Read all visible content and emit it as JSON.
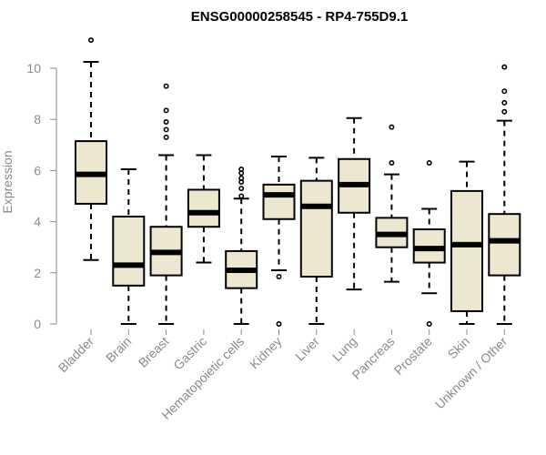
{
  "chart_data": {
    "type": "boxplot",
    "title": "ENSG00000258545 - RP4-755D9.1",
    "xlabel": "",
    "ylabel": "Expression",
    "ylim": [
      0,
      11.3
    ],
    "yticks": [
      0,
      2,
      4,
      6,
      8,
      10
    ],
    "box_fill": "#ede7cf",
    "grid": false,
    "categories": [
      "Bladder",
      "Brain",
      "Breast",
      "Gastric",
      "Hematopoietic cells",
      "Kidney",
      "Liver",
      "Lung",
      "Pancreas",
      "Prostate",
      "Skin",
      "Unknown / Other"
    ],
    "boxes": [
      {
        "name": "Bladder",
        "min": 2.5,
        "q1": 4.7,
        "median": 5.85,
        "q3": 7.15,
        "max": 10.25,
        "outliers": [
          11.1
        ]
      },
      {
        "name": "Brain",
        "min": 0.0,
        "q1": 1.5,
        "median": 2.3,
        "q3": 4.2,
        "max": 6.05,
        "outliers": []
      },
      {
        "name": "Breast",
        "min": 0.0,
        "q1": 1.9,
        "median": 2.8,
        "q3": 3.8,
        "max": 6.6,
        "outliers": [
          7.3,
          7.6,
          7.9,
          8.35,
          9.3
        ]
      },
      {
        "name": "Gastric",
        "min": 2.4,
        "q1": 3.8,
        "median": 4.35,
        "q3": 5.25,
        "max": 6.6,
        "outliers": []
      },
      {
        "name": "Hematopoietic cells",
        "min": 0.0,
        "q1": 1.4,
        "median": 2.1,
        "q3": 2.85,
        "max": 4.9,
        "outliers": [
          5.0,
          5.3,
          5.55,
          5.7,
          5.9,
          6.05
        ]
      },
      {
        "name": "Kidney",
        "min": 2.1,
        "q1": 4.1,
        "median": 5.05,
        "q3": 5.45,
        "max": 6.55,
        "outliers": [
          1.85,
          0.0
        ]
      },
      {
        "name": "Liver",
        "min": 0.0,
        "q1": 1.85,
        "median": 4.6,
        "q3": 5.6,
        "max": 6.5,
        "outliers": []
      },
      {
        "name": "Lung",
        "min": 1.35,
        "q1": 4.35,
        "median": 5.45,
        "q3": 6.45,
        "max": 8.05,
        "outliers": []
      },
      {
        "name": "Pancreas",
        "min": 1.65,
        "q1": 3.0,
        "median": 3.5,
        "q3": 4.15,
        "max": 5.85,
        "outliers": [
          6.3,
          7.7
        ]
      },
      {
        "name": "Prostate",
        "min": 1.2,
        "q1": 2.4,
        "median": 2.95,
        "q3": 3.7,
        "max": 4.5,
        "outliers": [
          6.3,
          0.0
        ]
      },
      {
        "name": "Skin",
        "min": 0.0,
        "q1": 0.5,
        "median": 3.1,
        "q3": 5.2,
        "max": 6.35,
        "outliers": []
      },
      {
        "name": "Unknown / Other",
        "min": 0.0,
        "q1": 1.9,
        "median": 3.25,
        "q3": 4.3,
        "max": 7.95,
        "outliers": [
          8.3,
          8.65,
          9.1,
          10.05
        ]
      }
    ]
  }
}
